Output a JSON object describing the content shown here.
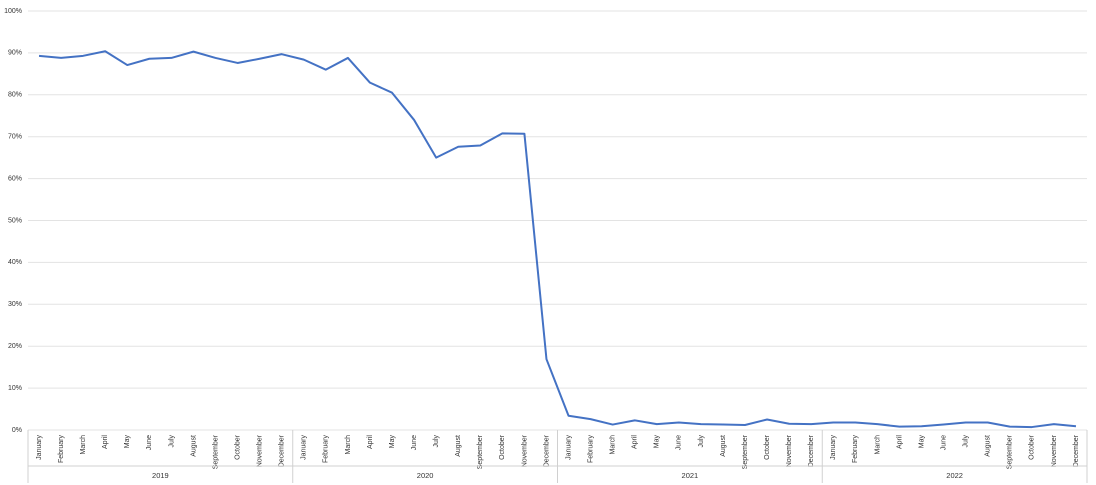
{
  "chart_data": {
    "type": "line",
    "categories": [
      "January",
      "February",
      "March",
      "April",
      "May",
      "June",
      "July",
      "August",
      "September",
      "October",
      "November",
      "December",
      "January",
      "February",
      "March",
      "April",
      "May",
      "June",
      "July",
      "August",
      "September",
      "October",
      "November",
      "December",
      "January",
      "February",
      "March",
      "April",
      "May",
      "June",
      "July",
      "August",
      "September",
      "October",
      "November",
      "December",
      "January",
      "February",
      "March",
      "April",
      "May",
      "June",
      "July",
      "August",
      "September",
      "October",
      "November",
      "December"
    ],
    "category_groups": [
      "2019",
      "2020",
      "2021",
      "2022"
    ],
    "series": [
      {
        "color": "#4472c4",
        "values": [
          89.3,
          88.8,
          89.3,
          90.4,
          87.1,
          88.6,
          88.8,
          90.3,
          88.8,
          87.6,
          88.6,
          89.7,
          88.4,
          86.0,
          88.8,
          82.9,
          80.5,
          74.0,
          65.0,
          67.6,
          67.9,
          70.8,
          70.7,
          16.9,
          3.4,
          2.6,
          1.3,
          2.3,
          1.4,
          1.8,
          1.4,
          1.3,
          1.2,
          2.5,
          1.5,
          1.4,
          1.8,
          1.8,
          1.4,
          0.8,
          0.9,
          1.3,
          1.8,
          1.8,
          0.8,
          0.7,
          1.4,
          0.9
        ]
      }
    ],
    "ylim": [
      0,
      100
    ],
    "yticks": [
      {
        "value": 0,
        "label": "0%"
      },
      {
        "value": 10,
        "label": "10%"
      },
      {
        "value": 20,
        "label": "20%"
      },
      {
        "value": 30,
        "label": "30%"
      },
      {
        "value": 40,
        "label": "40%"
      },
      {
        "value": 50,
        "label": "50%"
      },
      {
        "value": 60,
        "label": "60%"
      },
      {
        "value": 70,
        "label": "70%"
      },
      {
        "value": 80,
        "label": "80%"
      },
      {
        "value": 90,
        "label": "90%"
      },
      {
        "value": 100,
        "label": "100%"
      }
    ],
    "grid": true
  }
}
